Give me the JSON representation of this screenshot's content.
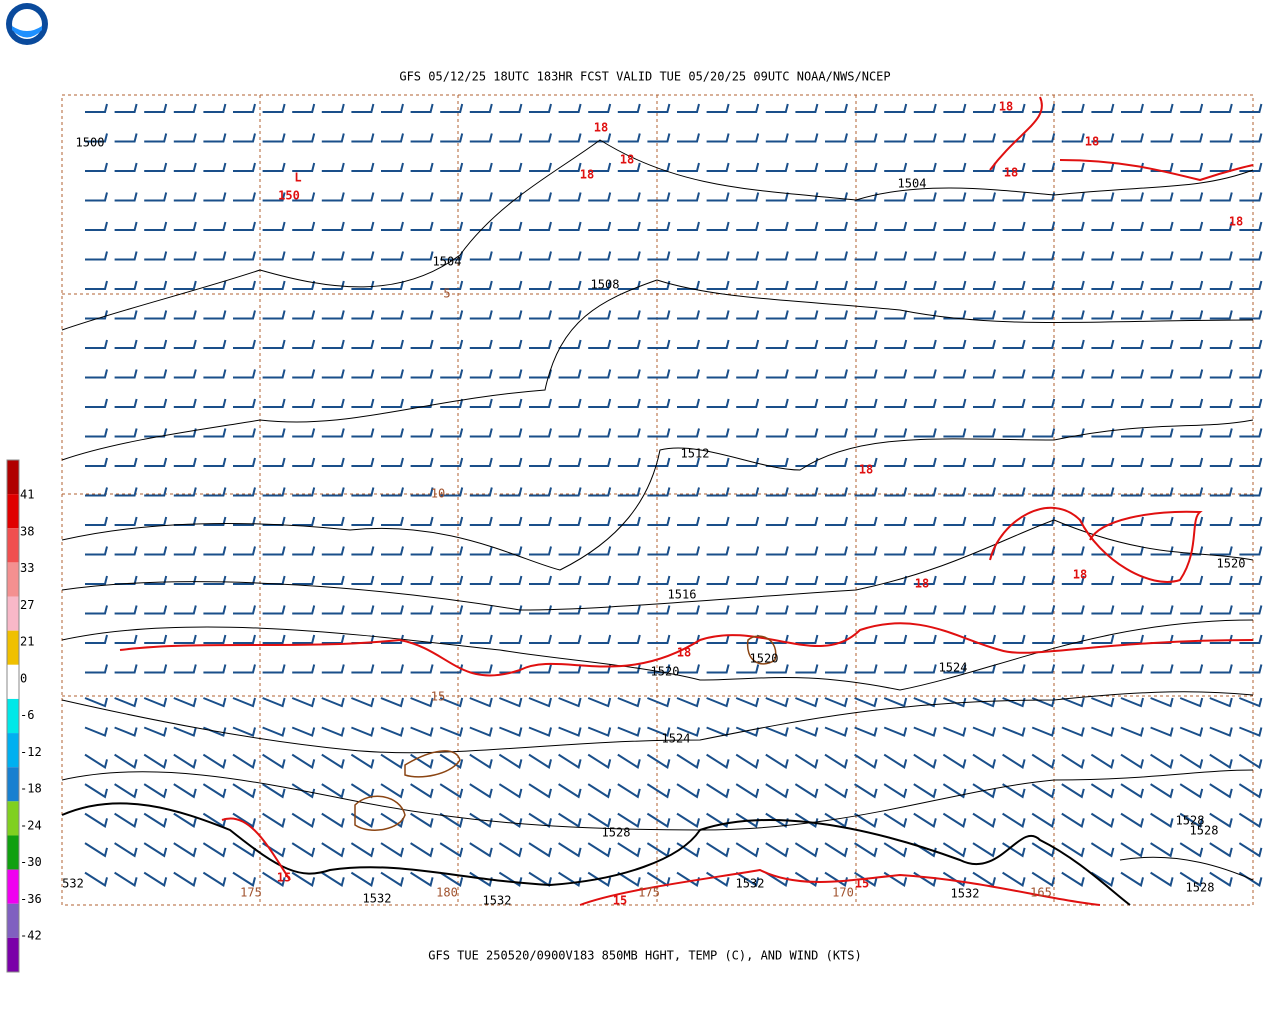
{
  "header": {
    "title": "GFS 05/12/25 18UTC 183HR FCST VALID TUE 05/20/25 09UTC NOAA/NWS/NCEP"
  },
  "contour_labels": [
    "1500",
    "L",
    "150",
    "18",
    "18",
    "18",
    "1504",
    "1508",
    "5",
    "1504",
    "18",
    "18",
    "18",
    "18",
    "1512",
    "18",
    "10",
    "1520",
    "18",
    "18",
    "1516",
    "18",
    "1520",
    "1520",
    "1524",
    "15",
    "1524",
    "1528",
    "1528",
    "1528",
    "1528",
    "532",
    "15",
    "175",
    "1532",
    "180",
    "1532",
    "15",
    "175",
    "1532",
    "170",
    "15",
    "1532",
    "165"
  ],
  "colorbar": {
    "labels": [
      41,
      38,
      33,
      27,
      21,
      0,
      -6,
      -12,
      -18,
      -24,
      -30,
      -36,
      -42
    ]
  },
  "footer": {
    "caption": "GFS TUE 250520/0900V183 850MB HGHT, TEMP (C), AND WIND (KTS)"
  }
}
